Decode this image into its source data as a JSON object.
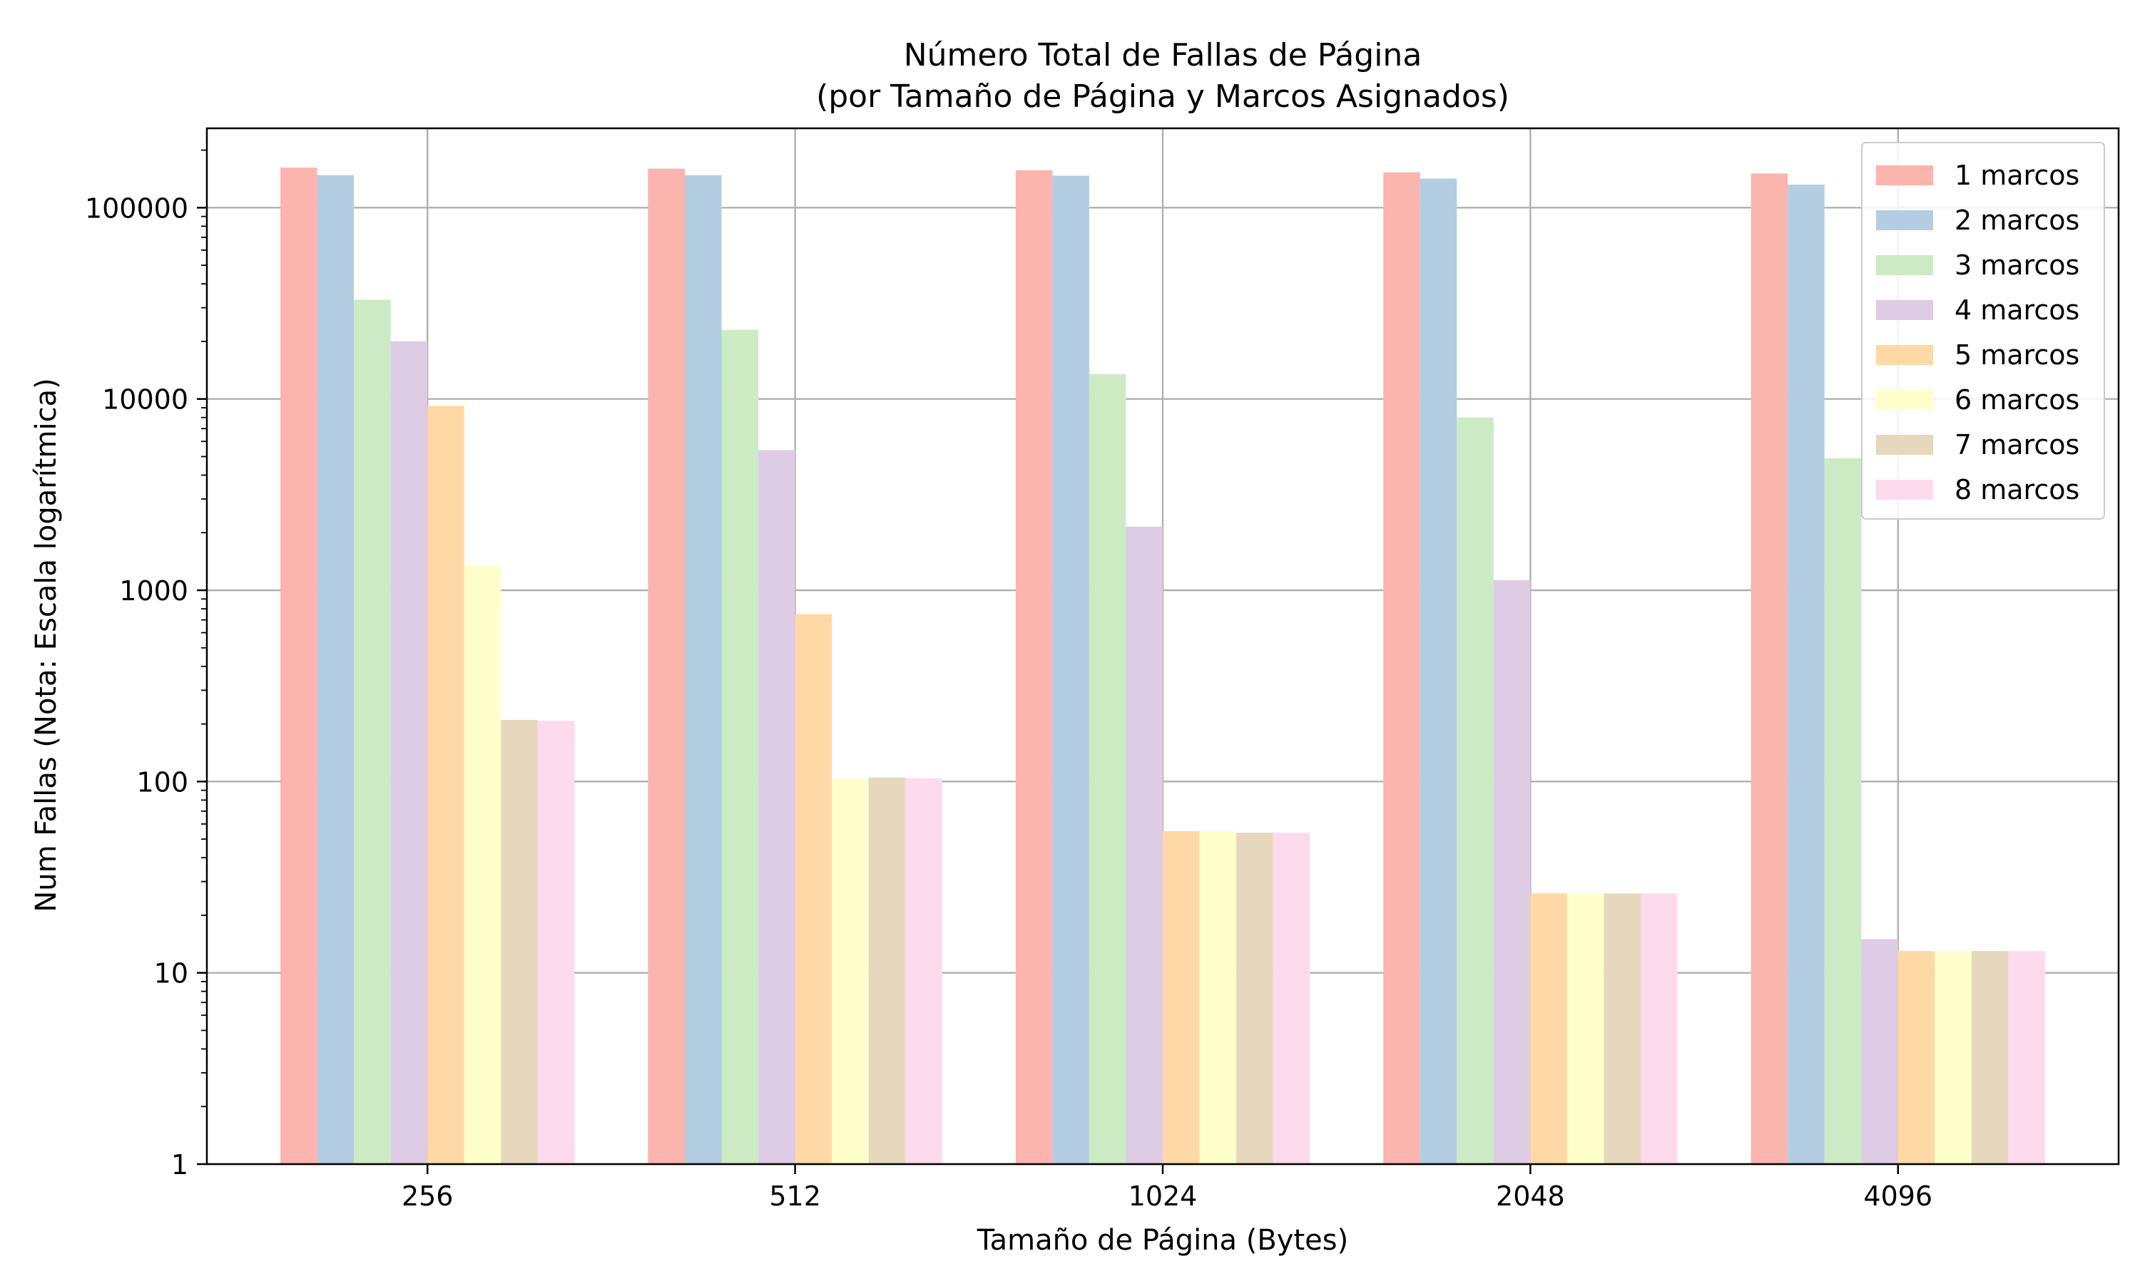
{
  "chart_data": {
    "type": "bar",
    "title": "Número Total de Fallas de Página",
    "subtitle": "(por Tamaño de Página y Marcos Asignados)",
    "xlabel": "Tamaño de Página (Bytes)",
    "ylabel": "Num Fallas (Nota: Escala logarítmica)",
    "y_scale": "log",
    "ylim": [
      1,
      260000
    ],
    "y_ticks": [
      1,
      10,
      100,
      1000,
      10000,
      100000
    ],
    "y_tick_labels": [
      "1",
      "10",
      "100",
      "1000",
      "10000",
      "100000"
    ],
    "grid": true,
    "legend_position": "top-right",
    "categories": [
      "256",
      "512",
      "1024",
      "2048",
      "4096"
    ],
    "series": [
      {
        "name": "1 marcos",
        "color": "#fbb4ae",
        "values": [
          162000,
          160000,
          157000,
          153000,
          151000
        ]
      },
      {
        "name": "2 marcos",
        "color": "#b3cde3",
        "values": [
          148000,
          148000,
          147000,
          142000,
          132000
        ]
      },
      {
        "name": "3 marcos",
        "color": "#ccebc5",
        "values": [
          33000,
          23000,
          13500,
          8000,
          4900
        ]
      },
      {
        "name": "4 marcos",
        "color": "#decbe4",
        "values": [
          20000,
          5400,
          2150,
          1130,
          15
        ]
      },
      {
        "name": "5 marcos",
        "color": "#fed9a6",
        "values": [
          9200,
          750,
          55,
          26,
          13
        ]
      },
      {
        "name": "6 marcos",
        "color": "#ffffcc",
        "values": [
          1350,
          103,
          55,
          26,
          13
        ]
      },
      {
        "name": "7 marcos",
        "color": "#e5d8bd",
        "values": [
          210,
          105,
          54,
          26,
          13
        ]
      },
      {
        "name": "8 marcos",
        "color": "#fddaec",
        "values": [
          208,
          104,
          54,
          26,
          13
        ]
      }
    ]
  }
}
